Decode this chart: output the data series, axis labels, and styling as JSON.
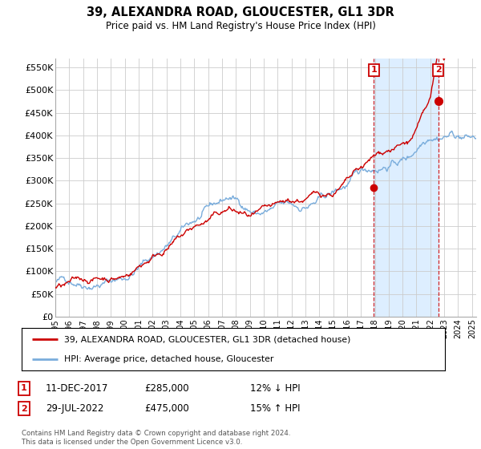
{
  "title": "39, ALEXANDRA ROAD, GLOUCESTER, GL1 3DR",
  "subtitle": "Price paid vs. HM Land Registry's House Price Index (HPI)",
  "ylabel_ticks": [
    "£0",
    "£50K",
    "£100K",
    "£150K",
    "£200K",
    "£250K",
    "£300K",
    "£350K",
    "£400K",
    "£450K",
    "£500K",
    "£550K"
  ],
  "ytick_values": [
    0,
    50000,
    100000,
    150000,
    200000,
    250000,
    300000,
    350000,
    400000,
    450000,
    500000,
    550000
  ],
  "ylim": [
    0,
    570000
  ],
  "xlim_start": 1995.0,
  "xlim_end": 2025.3,
  "x_tick_years": [
    1995,
    1996,
    1997,
    1998,
    1999,
    2000,
    2001,
    2002,
    2003,
    2004,
    2005,
    2006,
    2007,
    2008,
    2009,
    2010,
    2011,
    2012,
    2013,
    2014,
    2015,
    2016,
    2017,
    2018,
    2019,
    2020,
    2021,
    2022,
    2023,
    2024,
    2025
  ],
  "hpi_color": "#7aaddc",
  "hpi_shade_color": "#ddeeff",
  "price_color": "#cc0000",
  "grid_color": "#cccccc",
  "bg_color": "#ffffff",
  "sale1_x": 2017.94,
  "sale1_y": 285000,
  "sale1_label": "1",
  "sale1_date": "11-DEC-2017",
  "sale1_price": "£285,000",
  "sale1_note": "12% ↓ HPI",
  "sale2_x": 2022.57,
  "sale2_y": 475000,
  "sale2_label": "2",
  "sale2_date": "29-JUL-2022",
  "sale2_price": "£475,000",
  "sale2_note": "15% ↑ HPI",
  "legend_line1": "39, ALEXANDRA ROAD, GLOUCESTER, GL1 3DR (detached house)",
  "legend_line2": "HPI: Average price, detached house, Gloucester",
  "footnote": "Contains HM Land Registry data © Crown copyright and database right 2024.\nThis data is licensed under the Open Government Licence v3.0."
}
